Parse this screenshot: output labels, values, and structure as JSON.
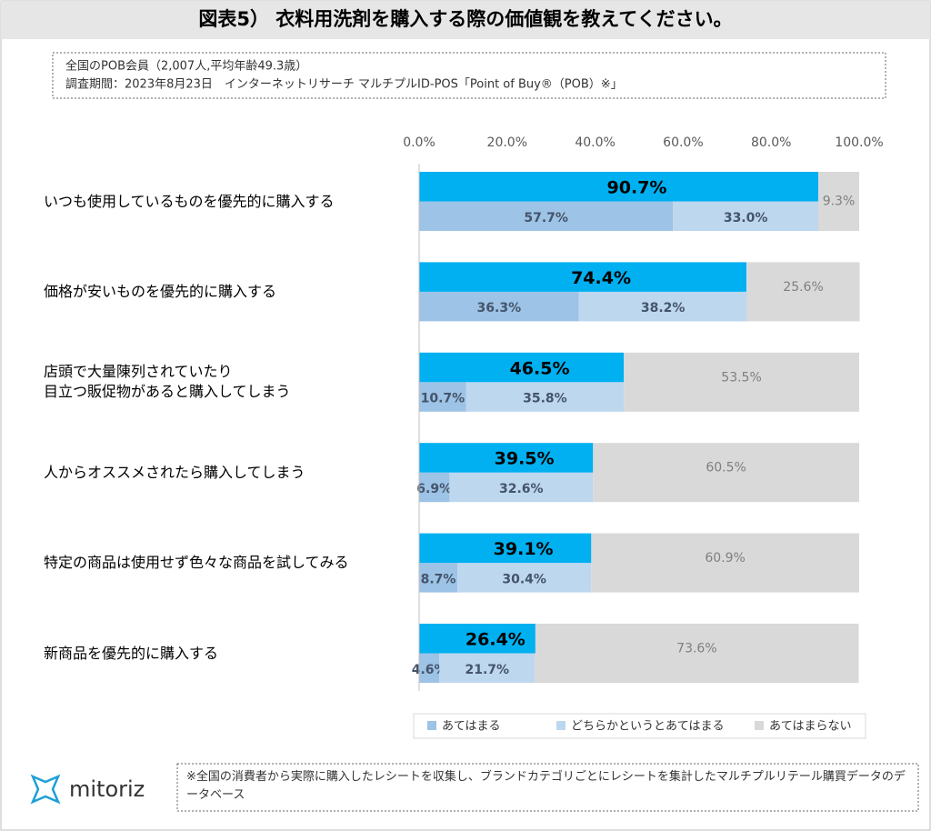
{
  "header": {
    "title": "図表5） 衣料用洗剤を購入する際の価値観を教えてください。",
    "notes": [
      "全国のPOB会員（2,007人,平均年齢49.3歳）",
      "調査期間：2023年8月23日　インターネットリサーチ マルチプルID-POS「Point of Buy®（POB）※」"
    ]
  },
  "chart_data": {
    "type": "stacked-barh",
    "categories": [
      "いつも使用しているものを優先的に購入する",
      "価格が安いものを優先的に購入する",
      "店頭で大量陳列されていたり\n目立つ販促物があると購入してしまう",
      "人からオススメされたら購入してしまう",
      "特定の商品は使用せず色々な商品を試してみる",
      "新商品を優先的に購入する"
    ],
    "totals": {
      "color": "#00b0f0",
      "values": [
        90.7,
        74.4,
        46.5,
        39.5,
        39.1,
        26.4
      ],
      "value_labels": [
        "90.7%",
        "74.4%",
        "46.5%",
        "39.5%",
        "39.1%",
        "26.4%"
      ]
    },
    "series": [
      {
        "name": "あてはまる",
        "color": "#9dc3e6",
        "values": [
          57.7,
          36.3,
          10.7,
          6.9,
          8.7,
          4.6
        ],
        "value_labels": [
          "57.7%",
          "36.3%",
          "10.7%",
          "6.9%",
          "8.7%",
          "4.6%"
        ]
      },
      {
        "name": "どちらかというとあてはまる",
        "color": "#bdd7ee",
        "values": [
          33.0,
          38.2,
          35.8,
          32.6,
          30.4,
          21.7
        ],
        "value_labels": [
          "33.0%",
          "38.2%",
          "35.8%",
          "32.6%",
          "30.4%",
          "21.7%"
        ]
      },
      {
        "name": "あてはまらない",
        "color": "#d9d9d9",
        "values": [
          9.3,
          25.6,
          53.5,
          60.5,
          60.9,
          73.6
        ],
        "value_labels": [
          "9.3%",
          "25.6%",
          "53.5%",
          "60.5%",
          "60.9%",
          "73.6%"
        ]
      }
    ],
    "xlim": [
      0,
      100
    ],
    "xticks": [
      {
        "value": 0,
        "label": "0.0%"
      },
      {
        "value": 20,
        "label": "20.0%"
      },
      {
        "value": 40,
        "label": "40.0%"
      },
      {
        "value": 60,
        "label": "60.0%"
      },
      {
        "value": 80,
        "label": "80.0%"
      },
      {
        "value": 100,
        "label": "100.0%"
      }
    ],
    "legend": "bottom"
  },
  "footer": {
    "logo": "mitoriz",
    "note": "※全国の消費者から実際に購入したレシートを収集し、ブランドカテゴリごとにレシートを集計したマルチプルリテール購買データのデータベース"
  }
}
